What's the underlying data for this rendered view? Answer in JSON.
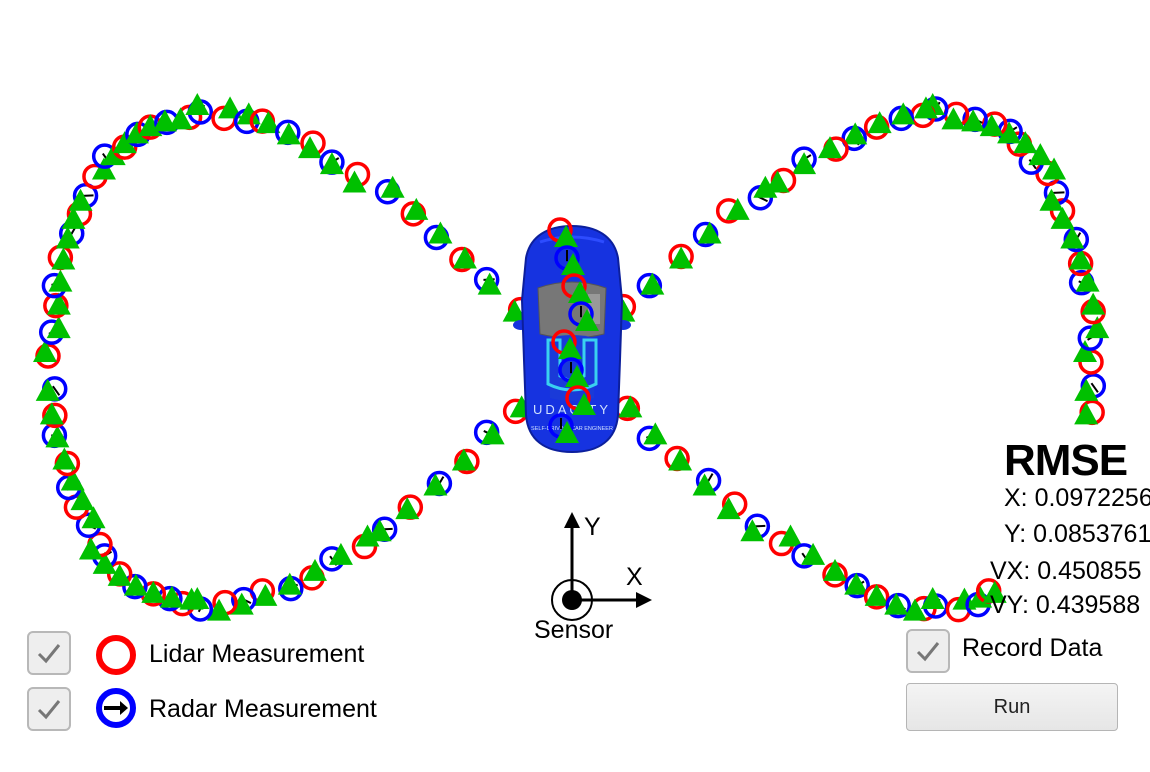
{
  "legend": {
    "lidar_label": "Lidar Measurement",
    "lidar_checked": true,
    "radar_label": "Radar Measurement",
    "radar_checked": true
  },
  "record": {
    "label": "Record Data",
    "checked": true
  },
  "run_button": {
    "label": "Run"
  },
  "rmse": {
    "title": "RMSE",
    "x": "X: 0.0972256",
    "y": "Y: 0.0853761",
    "vx": "VX: 0.450855",
    "vy": "VY: 0.439588"
  },
  "sensor": {
    "label": "Sensor",
    "x_axis": "X",
    "y_axis": "Y"
  },
  "car": {
    "brand": "UDACITY",
    "tagline": "SELF-DRIVING CAR ENGINEER"
  },
  "colors": {
    "lidar": "#ff0000",
    "radar": "#0000ff",
    "estimate": "#00c000",
    "car_body": "#1633e0"
  },
  "icons": {
    "checkbox": "check-icon",
    "lidar": "red-ring-icon",
    "radar": "blue-ring-arrow-icon",
    "estimate": "green-triangle-icon",
    "sensor": "sensor-origin-icon"
  }
}
